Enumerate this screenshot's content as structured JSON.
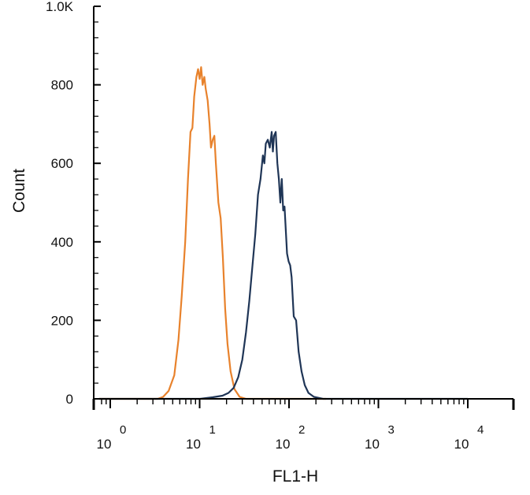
{
  "chart_data": {
    "type": "line",
    "xlabel": "FL1-H",
    "ylabel": "Count",
    "x_scale": "log",
    "xlim": [
      0.75,
      10000
    ],
    "ylim": [
      0,
      1000
    ],
    "x_ticks": [
      {
        "base": "10",
        "exp": "0",
        "value": 1
      },
      {
        "base": "10",
        "exp": "1",
        "value": 10
      },
      {
        "base": "10",
        "exp": "2",
        "value": 100
      },
      {
        "base": "10",
        "exp": "3",
        "value": 1000
      },
      {
        "base": "10",
        "exp": "4",
        "value": 10000
      }
    ],
    "y_ticks": [
      {
        "label": "0",
        "value": 0
      },
      {
        "label": "200",
        "value": 200
      },
      {
        "label": "400",
        "value": 400
      },
      {
        "label": "600",
        "value": 600
      },
      {
        "label": "800",
        "value": 800
      },
      {
        "label": "1.0K",
        "value": 1000
      }
    ],
    "grid": false,
    "legend": "none",
    "series": [
      {
        "color": "#E8822C",
        "points": [
          [
            0.75,
            0
          ],
          [
            3.4,
            0
          ],
          [
            3.9,
            5
          ],
          [
            4.5,
            20
          ],
          [
            5.2,
            60
          ],
          [
            5.8,
            150
          ],
          [
            6.3,
            260
          ],
          [
            6.9,
            400
          ],
          [
            7.4,
            560
          ],
          [
            7.9,
            680
          ],
          [
            8.3,
            690
          ],
          [
            8.7,
            770
          ],
          [
            9.2,
            820
          ],
          [
            9.6,
            840
          ],
          [
            10.0,
            815
          ],
          [
            10.4,
            845
          ],
          [
            10.8,
            800
          ],
          [
            11.3,
            820
          ],
          [
            11.7,
            790
          ],
          [
            12.3,
            760
          ],
          [
            12.9,
            700
          ],
          [
            13.4,
            640
          ],
          [
            14.0,
            660
          ],
          [
            14.6,
            670
          ],
          [
            15.2,
            600
          ],
          [
            16.2,
            500
          ],
          [
            17.2,
            460
          ],
          [
            18.2,
            360
          ],
          [
            19.3,
            230
          ],
          [
            20.5,
            140
          ],
          [
            22.2,
            70
          ],
          [
            24.5,
            25
          ],
          [
            28,
            5
          ],
          [
            33,
            0
          ],
          [
            260,
            0
          ]
        ]
      },
      {
        "color": "#1F3556",
        "points": [
          [
            0.75,
            0
          ],
          [
            10,
            0
          ],
          [
            14,
            4
          ],
          [
            18,
            8
          ],
          [
            21,
            15
          ],
          [
            24,
            28
          ],
          [
            27,
            55
          ],
          [
            30,
            100
          ],
          [
            33,
            170
          ],
          [
            36,
            250
          ],
          [
            39,
            340
          ],
          [
            42,
            420
          ],
          [
            45,
            520
          ],
          [
            48,
            560
          ],
          [
            51,
            620
          ],
          [
            53,
            600
          ],
          [
            55,
            650
          ],
          [
            58,
            660
          ],
          [
            61,
            640
          ],
          [
            64,
            680
          ],
          [
            66,
            630
          ],
          [
            68,
            670
          ],
          [
            71,
            680
          ],
          [
            74,
            600
          ],
          [
            77,
            560
          ],
          [
            80,
            500
          ],
          [
            83,
            560
          ],
          [
            86,
            480
          ],
          [
            89,
            490
          ],
          [
            92,
            430
          ],
          [
            95,
            370
          ],
          [
            99,
            350
          ],
          [
            103,
            340
          ],
          [
            107,
            310
          ],
          [
            113,
            210
          ],
          [
            120,
            200
          ],
          [
            128,
            120
          ],
          [
            138,
            70
          ],
          [
            150,
            35
          ],
          [
            165,
            15
          ],
          [
            190,
            5
          ],
          [
            240,
            0
          ],
          [
            10000,
            0
          ]
        ]
      }
    ]
  }
}
